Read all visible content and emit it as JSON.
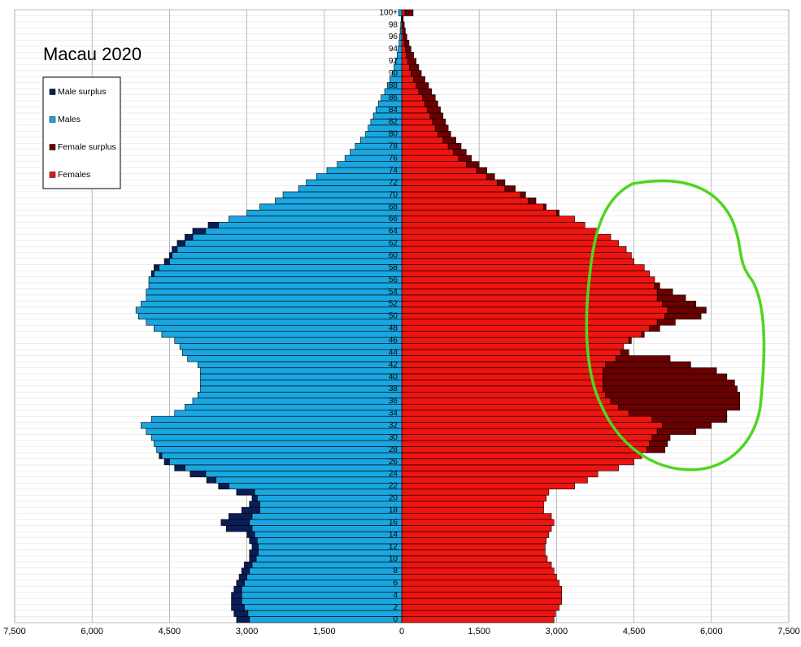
{
  "chart_data": {
    "type": "pyramid",
    "title": "Macau 2020",
    "categories": [
      "0",
      null,
      "2",
      null,
      "4",
      null,
      "6",
      null,
      "8",
      null,
      "10",
      null,
      "12",
      null,
      "14",
      null,
      "16",
      null,
      "18",
      null,
      "20",
      null,
      "22",
      null,
      "24",
      null,
      "26",
      null,
      "28",
      null,
      "30",
      null,
      "32",
      null,
      "34",
      null,
      "36",
      null,
      "38",
      null,
      "40",
      null,
      "42",
      null,
      "44",
      null,
      "46",
      null,
      "48",
      null,
      "50",
      null,
      "52",
      null,
      "54",
      null,
      "56",
      null,
      "58",
      null,
      "60",
      null,
      "62",
      null,
      "64",
      null,
      "66",
      null,
      "68",
      null,
      "70",
      null,
      "72",
      null,
      "74",
      null,
      "76",
      null,
      "78",
      null,
      "80",
      null,
      "82",
      null,
      "84",
      null,
      "86",
      null,
      "88",
      null,
      "90",
      null,
      "92",
      null,
      "94",
      null,
      "96",
      null,
      "98",
      null,
      "100+"
    ],
    "series": [
      {
        "name": "Male surplus",
        "color": "#0b1d57",
        "values": [
          -250,
          -270,
          -250,
          -200,
          -200,
          -150,
          -150,
          -150,
          -150,
          -150,
          -130,
          -170,
          -120,
          -150,
          -150,
          -500,
          -550,
          -450,
          -350,
          -200,
          -100,
          -350,
          -200,
          -180,
          -300,
          -200,
          -100,
          -50,
          0,
          0,
          0,
          0,
          0,
          0,
          0,
          0,
          0,
          0,
          0,
          0,
          0,
          0,
          0,
          0,
          0,
          0,
          0,
          0,
          0,
          0,
          0,
          0,
          0,
          0,
          0,
          0,
          0,
          -50,
          -100,
          -100,
          -50,
          -100,
          -150,
          -150,
          -250,
          -200,
          0,
          0,
          0,
          0,
          0,
          0,
          0,
          0,
          0,
          0,
          0,
          0,
          0,
          0,
          0,
          0,
          0,
          0,
          0,
          0,
          0,
          0,
          0,
          0,
          0,
          0,
          0,
          0,
          0,
          0,
          0,
          0,
          0,
          0,
          0
        ]
      },
      {
        "name": "Males",
        "color": "#1aa6e0",
        "values": [
          -2950,
          -2980,
          -3050,
          -3100,
          -3100,
          -3100,
          -3050,
          -3000,
          -2950,
          -2900,
          -2820,
          -2780,
          -2780,
          -2800,
          -2850,
          -2900,
          -2950,
          -2900,
          -2750,
          -2750,
          -2800,
          -2850,
          -3350,
          -3600,
          -3800,
          -4200,
          -4500,
          -4650,
          -4750,
          -4800,
          -4850,
          -4950,
          -5050,
          -4850,
          -4400,
          -4200,
          -4050,
          -3950,
          -3900,
          -3900,
          -3900,
          -3900,
          -3950,
          -4150,
          -4250,
          -4300,
          -4400,
          -4650,
          -4800,
          -4950,
          -5100,
          -5150,
          -5050,
          -4950,
          -4950,
          -4900,
          -4900,
          -4800,
          -4700,
          -4500,
          -4450,
          -4350,
          -4200,
          -4050,
          -3800,
          -3550,
          -3350,
          -3000,
          -2750,
          -2450,
          -2300,
          -2000,
          -1850,
          -1650,
          -1450,
          -1250,
          -1100,
          -1000,
          -900,
          -800,
          -700,
          -650,
          -600,
          -550,
          -500,
          -450,
          -400,
          -330,
          -280,
          -230,
          -180,
          -150,
          -120,
          -90,
          -70,
          -50,
          -40,
          -30,
          -20,
          -10,
          -60
        ]
      },
      {
        "name": "Female surplus",
        "color": "#6a0000",
        "values": [
          0,
          0,
          0,
          0,
          0,
          0,
          0,
          0,
          0,
          0,
          0,
          0,
          0,
          0,
          0,
          0,
          0,
          0,
          0,
          0,
          0,
          0,
          0,
          0,
          0,
          0,
          0,
          0,
          350,
          350,
          350,
          750,
          950,
          1450,
          1900,
          2350,
          2500,
          2600,
          2600,
          2550,
          2400,
          2200,
          1650,
          1050,
          150,
          0,
          50,
          50,
          200,
          350,
          700,
          750,
          650,
          550,
          300,
          100,
          0,
          0,
          0,
          0,
          0,
          0,
          0,
          0,
          0,
          0,
          0,
          50,
          50,
          150,
          100,
          200,
          150,
          150,
          200,
          250,
          250,
          250,
          250,
          250,
          250,
          250,
          250,
          250,
          250,
          250,
          250,
          250,
          240,
          220,
          200,
          180,
          160,
          140,
          110,
          90,
          60,
          40,
          30,
          20,
          160
        ]
      },
      {
        "name": "Females",
        "color": "#ee1410",
        "values": [
          2950,
          2980,
          3050,
          3100,
          3100,
          3100,
          3050,
          3000,
          2950,
          2900,
          2820,
          2780,
          2780,
          2800,
          2850,
          2900,
          2950,
          2900,
          2750,
          2750,
          2800,
          2850,
          3350,
          3600,
          3800,
          4200,
          4500,
          4650,
          4750,
          4800,
          4850,
          4950,
          5050,
          4850,
          4400,
          4200,
          4050,
          3950,
          3900,
          3900,
          3900,
          3900,
          3950,
          4150,
          4250,
          4300,
          4400,
          4650,
          4800,
          4950,
          5100,
          5150,
          5050,
          4950,
          4950,
          4900,
          4900,
          4800,
          4700,
          4500,
          4450,
          4350,
          4200,
          4050,
          3800,
          3550,
          3350,
          3000,
          2750,
          2450,
          2300,
          2000,
          1850,
          1650,
          1450,
          1250,
          1100,
          1000,
          900,
          800,
          700,
          650,
          600,
          550,
          500,
          450,
          400,
          330,
          280,
          230,
          180,
          150,
          120,
          90,
          70,
          50,
          40,
          30,
          20,
          10,
          60
        ]
      }
    ],
    "xlim": [
      -7500,
      7500
    ],
    "xticks": [
      {
        "value": -7500,
        "label": "7,500"
      },
      {
        "value": -6000,
        "label": "6,000"
      },
      {
        "value": -4500,
        "label": "4,500"
      },
      {
        "value": -3000,
        "label": "3,000"
      },
      {
        "value": -1500,
        "label": "1,500"
      },
      0,
      {
        "value": 1500,
        "label": "1,500"
      },
      {
        "value": 3000,
        "label": "3,000"
      },
      {
        "value": 4500,
        "label": "4,500"
      },
      {
        "value": 6000,
        "label": "6,000"
      },
      {
        "value": 7500,
        "label": "7,500"
      }
    ],
    "grid": true
  }
}
